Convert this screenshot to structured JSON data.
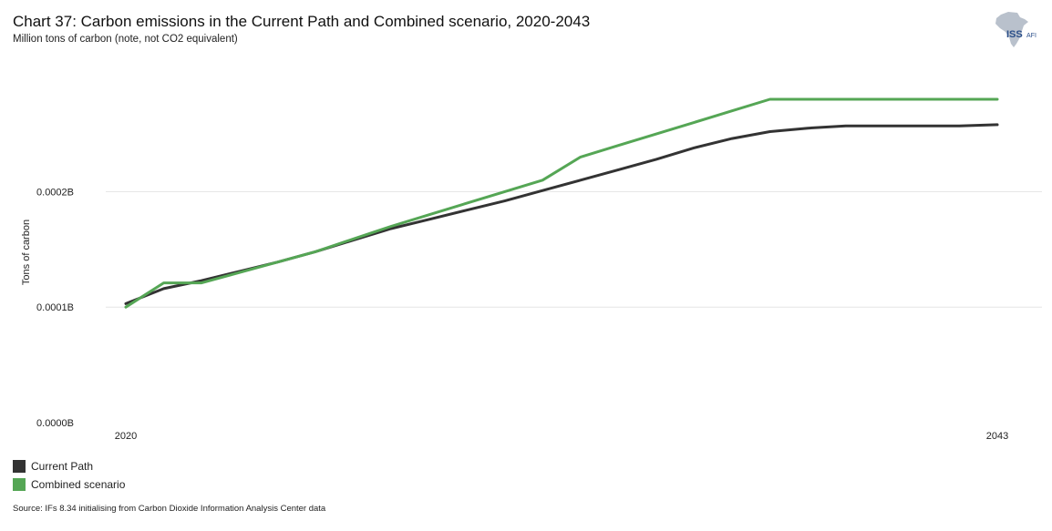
{
  "header": {
    "title": "Chart 37: Carbon emissions in the Current Path and Combined scenario, 2020-2043",
    "subtitle": "Million tons of carbon (note, not CO2 equivalent)"
  },
  "logo": {
    "text_main": "ISS",
    "text_sub": "AFI",
    "icon": "africa-map-icon"
  },
  "source": "Source: IFs 8.34 initialising from Carbon Dioxide Information Analysis Center data",
  "colors": {
    "current_path": "#333333",
    "combined": "#55a655",
    "grid": "#e6e6e6"
  },
  "chart_data": {
    "type": "line",
    "title": "Chart 37: Carbon emissions in the Current Path and Combined scenario, 2020-2043",
    "ylabel": "Tons of carbon",
    "xlabel": "",
    "x": [
      2020,
      2021,
      2022,
      2023,
      2024,
      2025,
      2026,
      2027,
      2028,
      2029,
      2030,
      2031,
      2032,
      2033,
      2034,
      2035,
      2036,
      2037,
      2038,
      2039,
      2040,
      2041,
      2042,
      2043
    ],
    "x_tick_labels": [
      "2020",
      "2043"
    ],
    "y_ticks": [
      0,
      0.0001,
      0.0002
    ],
    "y_tick_labels": [
      "0.0000B",
      "0.0001B",
      "0.0002B"
    ],
    "ylim": [
      0,
      0.000295
    ],
    "grid": true,
    "legend_position": "bottom-left",
    "series": [
      {
        "name": "Current Path",
        "color": "#333333",
        "values": [
          0.000103,
          0.000116,
          0.000123,
          0.000131,
          0.000139,
          0.000148,
          0.000158,
          0.000168,
          0.000176,
          0.000184,
          0.000192,
          0.000201,
          0.00021,
          0.000219,
          0.000228,
          0.000238,
          0.000246,
          0.000252,
          0.000255,
          0.000257,
          0.000257,
          0.000257,
          0.000257,
          0.000258
        ]
      },
      {
        "name": "Combined scenario",
        "color": "#55a655",
        "values": [
          0.0001,
          0.000121,
          0.000121,
          0.00013,
          0.000139,
          0.000148,
          0.000159,
          0.00017,
          0.00018,
          0.00019,
          0.0002,
          0.00021,
          0.00023,
          0.00024,
          0.00025,
          0.00026,
          0.00027,
          0.00028,
          0.00028,
          0.00028,
          0.00028,
          0.00028,
          0.00028,
          0.00028
        ]
      }
    ]
  }
}
